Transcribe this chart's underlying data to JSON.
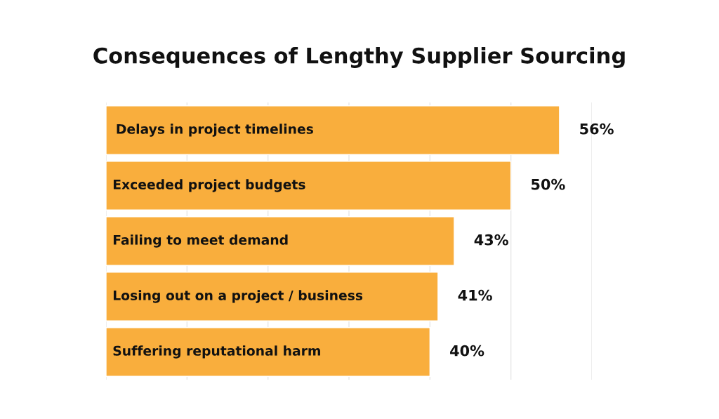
{
  "chart_data": {
    "type": "bar",
    "orientation": "horizontal",
    "title": "Consequences of Lengthy Supplier Sourcing",
    "categories": [
      "Delays in project timelines",
      "Exceeded project budgets",
      "Failing to meet demand",
      "Losing out on a project / business",
      "Suffering reputational harm"
    ],
    "values": [
      56,
      50,
      43,
      41,
      40
    ],
    "color": "#f9ae3d",
    "data_labels": true,
    "value_labels": [
      "56%",
      "50%",
      "43%",
      "41%",
      "40%"
    ],
    "xlim": [
      0,
      60
    ],
    "xticks": [
      {
        "value": 0,
        "label": null
      },
      {
        "value": 10,
        "label": null
      },
      {
        "value": 20,
        "label": null
      },
      {
        "value": 30,
        "label": null
      },
      {
        "value": 40,
        "label": null
      },
      {
        "value": 50,
        "label": null
      },
      {
        "value": 60,
        "label": null
      }
    ],
    "grid": "x"
  }
}
